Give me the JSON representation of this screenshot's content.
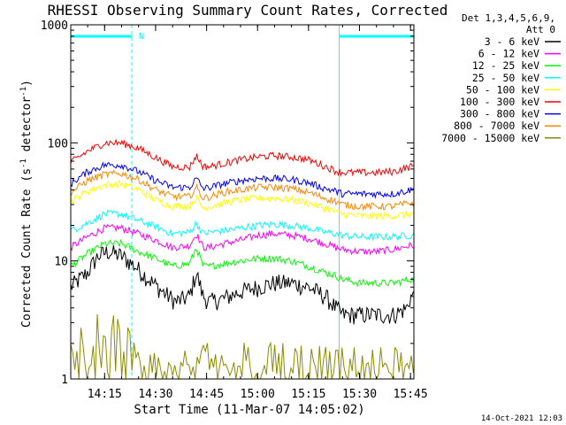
{
  "chart_data": {
    "type": "line",
    "title": "RHESSI Observing Summary Count Rates, Corrected",
    "xlabel": "Start Time (11-Mar-07 14:05:02)",
    "ylabel": "Corrected Count Rate (s⁻¹ detector⁻¹)",
    "y_scale": "log",
    "ylim": [
      1,
      1000
    ],
    "xlim": [
      "14:05:02",
      "15:46:00"
    ],
    "x_ticks": [
      "14:15",
      "14:30",
      "14:45",
      "15:00",
      "15:15",
      "15:30",
      "15:45"
    ],
    "y_ticks": [
      "1",
      "10",
      "100",
      "1000"
    ],
    "legend_header": [
      "Det 1,3,4,5,6,9,",
      "Att 0"
    ],
    "legend_position": "right",
    "flags": {
      "night_intervals": [
        [
          "14:05:02",
          "14:23:00"
        ],
        [
          "15:24:00",
          "15:46:00"
        ]
      ],
      "saa_label": "N"
    },
    "timestamp": "14-Oct-2021 12:03",
    "series": [
      {
        "name": "3 - 6 keV",
        "color": "#000000",
        "x": [
          "14:05",
          "14:10",
          "14:13",
          "14:16",
          "14:20",
          "14:24",
          "14:28",
          "14:32",
          "14:36",
          "14:40",
          "14:42",
          "14:44",
          "14:46",
          "14:50",
          "14:55",
          "15:00",
          "15:05",
          "15:10",
          "15:15",
          "15:20",
          "15:23",
          "15:25",
          "15:30",
          "15:35",
          "15:40",
          "15:44",
          "15:45"
        ],
        "values": [
          6,
          8,
          11,
          12,
          11,
          9,
          7,
          5.5,
          4.5,
          5,
          8,
          5,
          4.5,
          4.8,
          5.5,
          6,
          6.5,
          6.5,
          6,
          5,
          4,
          3.5,
          3.5,
          3.5,
          3.5,
          4,
          5
        ]
      },
      {
        "name": "6 - 12 keV",
        "color": "#ff00ff",
        "x": [
          "14:05",
          "14:10",
          "14:15",
          "14:20",
          "14:25",
          "14:30",
          "14:35",
          "14:40",
          "14:42",
          "14:44",
          "14:46",
          "14:50",
          "14:55",
          "15:00",
          "15:05",
          "15:10",
          "15:15",
          "15:20",
          "15:23",
          "15:25",
          "15:30",
          "15:35",
          "15:40",
          "15:45"
        ],
        "values": [
          13,
          16,
          19,
          19,
          17,
          15,
          13,
          13.5,
          17,
          13,
          13,
          14,
          15,
          16.5,
          17,
          16.5,
          15.5,
          14,
          13,
          12.5,
          12,
          12,
          12.5,
          13.5
        ]
      },
      {
        "name": "12 - 25 keV",
        "color": "#00ff00",
        "x": [
          "14:05",
          "14:10",
          "14:15",
          "14:20",
          "14:25",
          "14:30",
          "14:35",
          "14:40",
          "14:42",
          "14:44",
          "14:46",
          "14:50",
          "14:55",
          "15:00",
          "15:05",
          "15:10",
          "15:15",
          "15:20",
          "15:23",
          "15:25",
          "15:30",
          "15:35",
          "15:40",
          "15:45"
        ],
        "values": [
          9,
          11.5,
          14,
          14,
          12,
          10.5,
          9,
          9.5,
          13,
          9,
          9,
          9.5,
          10,
          10.5,
          10.5,
          10,
          9,
          8,
          7.5,
          7,
          6.5,
          6.5,
          6.5,
          7
        ]
      },
      {
        "name": "25 - 50 keV",
        "color": "#00ffff",
        "x": [
          "14:05",
          "14:10",
          "14:15",
          "14:20",
          "14:25",
          "14:30",
          "14:35",
          "14:40",
          "14:42",
          "14:44",
          "14:46",
          "14:50",
          "14:55",
          "15:00",
          "15:05",
          "15:10",
          "15:15",
          "15:20",
          "15:23",
          "15:25",
          "15:30",
          "15:35",
          "15:40",
          "15:45"
        ],
        "values": [
          18,
          21,
          25,
          25,
          22,
          19.5,
          17,
          17.5,
          21,
          17,
          17.5,
          18,
          19,
          20,
          20.5,
          20,
          19,
          17.5,
          17,
          16.5,
          16,
          16,
          16,
          16.5
        ]
      },
      {
        "name": "50 - 100 keV",
        "color": "#ffff00",
        "x": [
          "14:05",
          "14:10",
          "14:15",
          "14:20",
          "14:25",
          "14:30",
          "14:35",
          "14:40",
          "14:42",
          "14:44",
          "14:46",
          "14:50",
          "14:55",
          "15:00",
          "15:05",
          "15:10",
          "15:15",
          "15:20",
          "15:23",
          "15:25",
          "15:30",
          "15:35",
          "15:40",
          "15:45"
        ],
        "values": [
          32,
          39,
          44,
          45,
          40,
          33,
          29,
          29.5,
          34,
          28,
          29,
          31,
          33,
          34,
          34,
          33,
          31,
          28,
          26,
          25,
          24,
          24,
          24,
          25
        ]
      },
      {
        "name": "100 - 300 keV",
        "color": "#ff0000",
        "x": [
          "14:05",
          "14:10",
          "14:15",
          "14:20",
          "14:25",
          "14:30",
          "14:35",
          "14:40",
          "14:42",
          "14:44",
          "14:46",
          "14:50",
          "14:55",
          "15:00",
          "15:05",
          "15:10",
          "15:15",
          "15:20",
          "15:23",
          "15:25",
          "15:30",
          "15:35",
          "15:40",
          "15:45"
        ],
        "values": [
          68,
          85,
          100,
          100,
          90,
          75,
          63,
          62,
          78,
          63,
          63,
          67,
          72,
          76,
          78,
          76,
          72,
          63,
          58,
          56,
          56,
          56,
          57,
          63
        ]
      },
      {
        "name": "300 - 800 keV",
        "color": "#0000ff",
        "x": [
          "14:05",
          "14:10",
          "14:15",
          "14:20",
          "14:25",
          "14:30",
          "14:35",
          "14:40",
          "14:42",
          "14:44",
          "14:46",
          "14:50",
          "14:55",
          "15:00",
          "15:05",
          "15:10",
          "15:15",
          "15:20",
          "15:23",
          "15:25",
          "15:30",
          "15:35",
          "15:40",
          "15:45"
        ],
        "values": [
          45,
          57,
          65,
          65,
          57,
          48,
          42,
          42,
          50,
          41,
          42,
          45,
          48,
          50,
          50,
          49,
          46,
          41,
          39,
          37,
          37,
          37,
          37,
          40
        ]
      },
      {
        "name": "800 - 7000 keV",
        "color": "#ff8800",
        "x": [
          "14:05",
          "14:10",
          "14:15",
          "14:20",
          "14:25",
          "14:30",
          "14:35",
          "14:40",
          "14:42",
          "14:44",
          "14:46",
          "14:50",
          "14:55",
          "15:00",
          "15:05",
          "15:10",
          "15:15",
          "15:20",
          "15:23",
          "15:25",
          "15:30",
          "15:35",
          "15:40",
          "15:45"
        ],
        "values": [
          38,
          48,
          54,
          55,
          49,
          40,
          35,
          35,
          42,
          34,
          35,
          38,
          40,
          42,
          42,
          41,
          38,
          34,
          32,
          30,
          29,
          29,
          29,
          31
        ]
      },
      {
        "name": "7000 - 15000 keV",
        "color": "#8b8b00",
        "x": [
          "14:05",
          "14:10",
          "14:15",
          "14:20",
          "14:25",
          "14:30",
          "14:35",
          "14:40",
          "14:45",
          "14:50",
          "14:55",
          "15:00",
          "15:05",
          "15:10",
          "15:15",
          "15:20",
          "15:25",
          "15:30",
          "15:35",
          "15:40",
          "15:45"
        ],
        "values": [
          1.5,
          2.5,
          2.8,
          2.5,
          1.8,
          1.5,
          1.3,
          1.3,
          1.5,
          1.5,
          1.5,
          1.6,
          1.6,
          1.5,
          1.5,
          1.4,
          1.4,
          1.4,
          1.4,
          1.4,
          1.4
        ]
      }
    ]
  }
}
